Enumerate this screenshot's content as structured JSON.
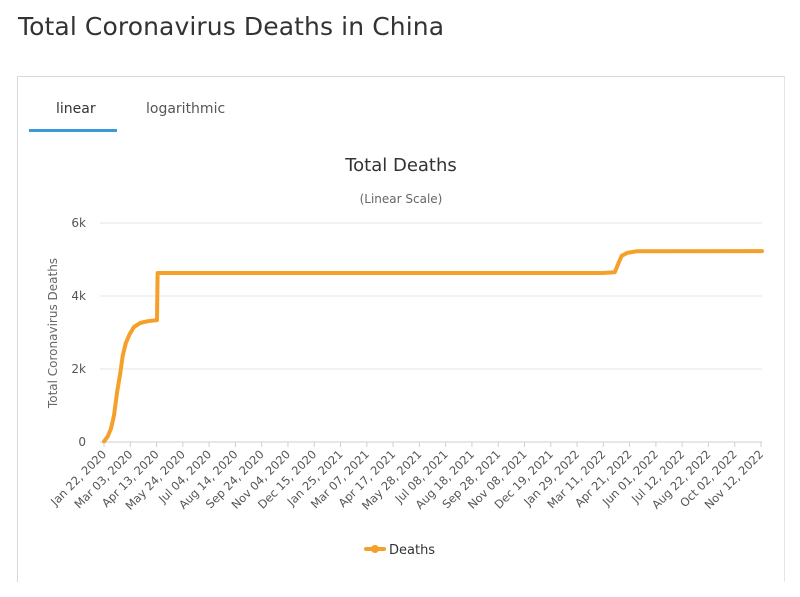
{
  "page": {
    "title": "Total Coronavirus Deaths in China"
  },
  "tabs": [
    {
      "label": "linear",
      "active": true
    },
    {
      "label": "logarithmic",
      "active": false
    }
  ],
  "colors": {
    "series": "#f5a02a",
    "tab_underline": "#3c9ad8",
    "grid": "#e6e6e6"
  },
  "chart_data": {
    "type": "line",
    "title": "Total Deaths",
    "subtitle": "(Linear Scale)",
    "xlabel": "",
    "ylabel": "Total Coronavirus Deaths",
    "y_ticks": [
      "0",
      "2k",
      "4k",
      "6k"
    ],
    "ylim": [
      0,
      6000
    ],
    "xlim": [
      "2020-01-22",
      "2022-12-12"
    ],
    "x_ticks": [
      "Jan 22, 2020",
      "Mar 03, 2020",
      "Apr 13, 2020",
      "May 24, 2020",
      "Jul 04, 2020",
      "Aug 14, 2020",
      "Sep 24, 2020",
      "Nov 04, 2020",
      "Dec 15, 2020",
      "Jan 25, 2021",
      "Mar 07, 2021",
      "Apr 17, 2021",
      "May 28, 2021",
      "Jul 08, 2021",
      "Aug 18, 2021",
      "Sep 28, 2021",
      "Nov 08, 2021",
      "Dec 19, 2021",
      "Jan 29, 2022",
      "Mar 11, 2022",
      "Apr 21, 2022",
      "Jun 01, 2022",
      "Jul 12, 2022",
      "Aug 22, 2022",
      "Oct 02, 2022",
      "Nov 12, 2022"
    ],
    "grid": true,
    "legend": "bottom-center",
    "series": [
      {
        "name": "Deaths",
        "x": [
          "2020-01-22",
          "2020-01-28",
          "2020-02-02",
          "2020-02-07",
          "2020-02-12",
          "2020-02-17",
          "2020-02-21",
          "2020-02-26",
          "2020-03-03",
          "2020-03-10",
          "2020-03-20",
          "2020-04-01",
          "2020-04-16",
          "2020-04-17",
          "2020-06-01",
          "2020-12-31",
          "2021-06-30",
          "2021-12-31",
          "2022-04-01",
          "2022-04-20",
          "2022-04-26",
          "2022-05-01",
          "2022-05-10",
          "2022-05-25",
          "2022-12-12"
        ],
        "values": [
          17,
          150,
          360,
          730,
          1370,
          1870,
          2360,
          2710,
          2950,
          3150,
          3260,
          3310,
          3340,
          4630,
          4630,
          4630,
          4630,
          4630,
          4630,
          4650,
          4900,
          5100,
          5180,
          5225,
          5230
        ]
      }
    ]
  }
}
